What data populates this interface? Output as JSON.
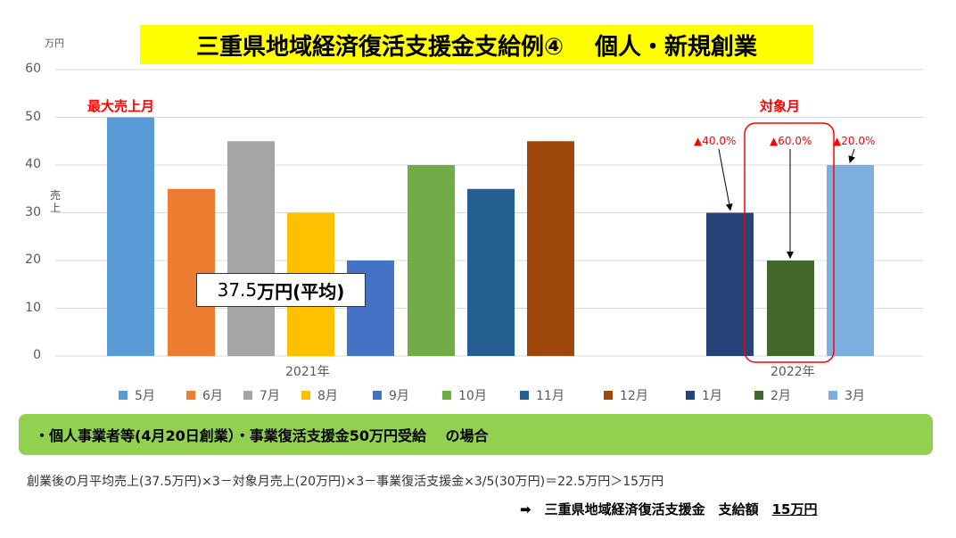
{
  "title": "三重県地域経済復活支援金支給例④　 個人・新規創業",
  "unit_label": "万円",
  "y_axis_label": "売上",
  "annotations": {
    "max_month": "最大売上月",
    "target_month": "対象月",
    "pct_jan": "▲40.0%",
    "pct_feb": "▲60.0%",
    "pct_mar": "▲20.0%",
    "average": "37.5",
    "average_suffix": "万円(平均)"
  },
  "chart_data": {
    "type": "bar",
    "ylim": [
      0,
      60
    ],
    "yticks": [
      0,
      10,
      20,
      30,
      40,
      50,
      60
    ],
    "grid": true,
    "legend_position": "bottom",
    "groups": [
      {
        "label": "2021年",
        "categories": [
          "5月",
          "6月",
          "7月",
          "8月",
          "9月",
          "10月",
          "11月",
          "12月"
        ],
        "values": [
          50,
          35,
          45,
          30,
          20,
          40,
          35,
          45
        ]
      },
      {
        "label": "2022年",
        "categories": [
          "1月",
          "2月",
          "3月"
        ],
        "values": [
          30,
          20,
          40
        ]
      }
    ],
    "colors": [
      "#5b9bd5",
      "#ed7d31",
      "#a5a5a5",
      "#ffc000",
      "#4472c4",
      "#70ad47",
      "#255e91",
      "#9e480e",
      "#264478",
      "#43682b",
      "#7cafdd"
    ],
    "average_line": 37.5
  },
  "legend": [
    "5月",
    "6月",
    "7月",
    "8月",
    "9月",
    "10月",
    "11月",
    "12月",
    "1月",
    "2月",
    "3月"
  ],
  "condition": "・個人事業者等(4月20日創業）・事業復活支援金50万円受給　 の場合",
  "formula": "創業後の月平均売上(37.5万円)×3－対象月売上(20万円)×3－事業復活支援金×3/5(30万円)＝22.5万円＞15万円",
  "result": {
    "prefix": "➡　三重県地域経済復活支援金　支給額　",
    "amount": "15万円"
  }
}
